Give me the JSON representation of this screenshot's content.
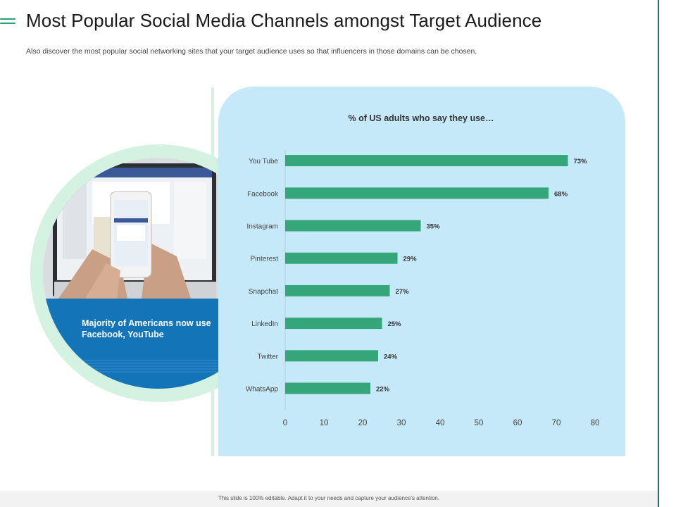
{
  "header": {
    "title": "Most Popular Social Media Channels amongst Target Audience",
    "subtitle": "Also discover the most popular social networking sites that your target audience uses so that influencers in those domains can be chosen."
  },
  "callout": {
    "text": "Majority of Americans now use Facebook, YouTube"
  },
  "footer": {
    "text": "This slide is 100% editable. Adapt it to your needs and capture your audience's attention."
  },
  "colors": {
    "bar": "#34a67a",
    "panel": "#c6e9fa",
    "accent": "#2e9e73",
    "callout": "#1474b8"
  },
  "chart_data": {
    "type": "bar",
    "orientation": "horizontal",
    "title": "% of US adults who say they use…",
    "categories": [
      "You Tube",
      "Facebook",
      "Instagram",
      "Pinterest",
      "Snapchat",
      "LinkedIn",
      "Twitter",
      "WhatsApp"
    ],
    "values": [
      73,
      68,
      35,
      29,
      27,
      25,
      24,
      22
    ],
    "value_labels": [
      "73%",
      "68%",
      "35%",
      "29%",
      "27%",
      "25%",
      "24%",
      "22%"
    ],
    "xlim": [
      0,
      80
    ],
    "xticks": [
      0,
      10,
      20,
      30,
      40,
      50,
      60,
      70,
      80
    ],
    "grid": false,
    "legend": "none"
  }
}
